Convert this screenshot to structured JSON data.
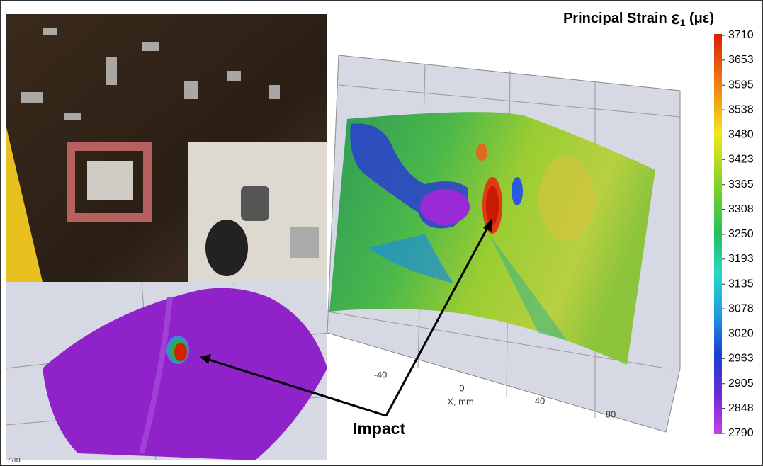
{
  "colorbar": {
    "title": "Principal Strain",
    "symbol": "ε",
    "subscript": "1",
    "unit": "(με)",
    "ticks": [
      3710,
      3653,
      3595,
      3538,
      3480,
      3423,
      3365,
      3308,
      3250,
      3193,
      3135,
      3078,
      3020,
      2963,
      2905,
      2848,
      2790
    ]
  },
  "plot": {
    "x_ticks": [
      -40,
      0,
      40,
      80
    ],
    "x_label": "X, mm"
  },
  "annotation": "Impact",
  "figure_id": "7781"
}
